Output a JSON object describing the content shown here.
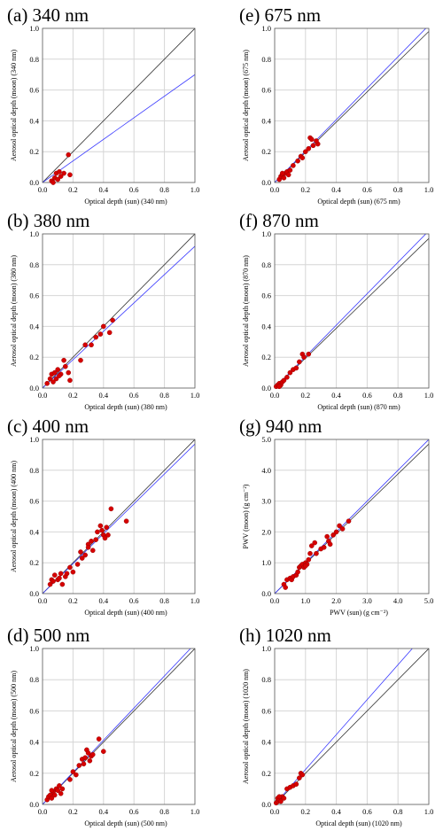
{
  "chart_data": [
    {
      "type": "scatter",
      "title": "(a)  340 nm",
      "xlabel": "Optical depth (sun)    (340 nm)",
      "ylabel": "Aerosol optical depth (moon)  (340 nm)",
      "xlim": [
        0,
        1.0
      ],
      "ylim": [
        0,
        1.0
      ],
      "xticks": [
        "0.0",
        "0.2",
        "0.4",
        "0.6",
        "0.8",
        "1.0"
      ],
      "yticks": [
        "0.0",
        "0.2",
        "0.4",
        "0.6",
        "0.8",
        "1.0"
      ],
      "grid": true,
      "fit_line": {
        "slope": 0.7,
        "intercept": 0.0
      },
      "reference_line": {
        "slope": 1.0,
        "intercept": 0.0
      },
      "points": [
        [
          0.06,
          0.01
        ],
        [
          0.08,
          0.03
        ],
        [
          0.09,
          0.06
        ],
        [
          0.11,
          0.07
        ],
        [
          0.12,
          0.04
        ],
        [
          0.14,
          0.06
        ],
        [
          0.17,
          0.18
        ],
        [
          0.18,
          0.05
        ],
        [
          0.07,
          0.0
        ],
        [
          0.1,
          0.02
        ]
      ]
    },
    {
      "type": "scatter",
      "title": "(b)  380 nm",
      "xlabel": "Optical depth (sun)    (380 nm)",
      "ylabel": "Aerosol optical depth (moon)  (380 nm)",
      "xlim": [
        0,
        1.0
      ],
      "ylim": [
        0,
        1.0
      ],
      "xticks": [
        "0.0",
        "0.2",
        "0.4",
        "0.6",
        "0.8",
        "1.0"
      ],
      "yticks": [
        "0.0",
        "0.2",
        "0.4",
        "0.6",
        "0.8",
        "1.0"
      ],
      "grid": true,
      "fit_line": {
        "slope": 0.92,
        "intercept": 0.0
      },
      "reference_line": {
        "slope": 1.0,
        "intercept": 0.0
      },
      "points": [
        [
          0.03,
          0.03
        ],
        [
          0.05,
          0.06
        ],
        [
          0.06,
          0.09
        ],
        [
          0.08,
          0.1
        ],
        [
          0.09,
          0.06
        ],
        [
          0.1,
          0.12
        ],
        [
          0.12,
          0.09
        ],
        [
          0.14,
          0.18
        ],
        [
          0.15,
          0.14
        ],
        [
          0.17,
          0.1
        ],
        [
          0.18,
          0.05
        ],
        [
          0.25,
          0.18
        ],
        [
          0.28,
          0.28
        ],
        [
          0.32,
          0.28
        ],
        [
          0.35,
          0.33
        ],
        [
          0.38,
          0.35
        ],
        [
          0.4,
          0.4
        ],
        [
          0.44,
          0.36
        ],
        [
          0.46,
          0.44
        ],
        [
          0.07,
          0.04
        ],
        [
          0.11,
          0.08
        ]
      ]
    },
    {
      "type": "scatter",
      "title": "(c)  400 nm",
      "xlabel": "Optical depth (sun)    (400 nm)",
      "ylabel": "Aerosol optical depth (moon)  (400 nm)",
      "xlim": [
        0,
        1.0
      ],
      "ylim": [
        0,
        1.0
      ],
      "xticks": [
        "0.0",
        "0.2",
        "0.4",
        "0.6",
        "0.8",
        "1.0"
      ],
      "yticks": [
        "0.0",
        "0.2",
        "0.4",
        "0.6",
        "0.8",
        "1.0"
      ],
      "grid": true,
      "fit_line": {
        "slope": 0.97,
        "intercept": 0.0
      },
      "reference_line": {
        "slope": 1.0,
        "intercept": 0.0
      },
      "points": [
        [
          0.05,
          0.06
        ],
        [
          0.06,
          0.09
        ],
        [
          0.07,
          0.08
        ],
        [
          0.08,
          0.12
        ],
        [
          0.1,
          0.09
        ],
        [
          0.11,
          0.1
        ],
        [
          0.12,
          0.13
        ],
        [
          0.13,
          0.06
        ],
        [
          0.15,
          0.11
        ],
        [
          0.16,
          0.13
        ],
        [
          0.18,
          0.17
        ],
        [
          0.2,
          0.14
        ],
        [
          0.23,
          0.19
        ],
        [
          0.25,
          0.27
        ],
        [
          0.26,
          0.23
        ],
        [
          0.28,
          0.25
        ],
        [
          0.3,
          0.32
        ],
        [
          0.32,
          0.34
        ],
        [
          0.33,
          0.28
        ],
        [
          0.35,
          0.35
        ],
        [
          0.36,
          0.4
        ],
        [
          0.38,
          0.44
        ],
        [
          0.39,
          0.41
        ],
        [
          0.4,
          0.38
        ],
        [
          0.41,
          0.36
        ],
        [
          0.42,
          0.43
        ],
        [
          0.43,
          0.38
        ],
        [
          0.45,
          0.55
        ],
        [
          0.55,
          0.47
        ],
        [
          0.3,
          0.3
        ]
      ]
    },
    {
      "type": "scatter",
      "title": "(d)  500 nm",
      "xlabel": "Optical depth (sun)    (500 nm)",
      "ylabel": "Aerosol optical depth (moon)  (500 nm)",
      "xlim": [
        0,
        1.0
      ],
      "ylim": [
        0,
        1.0
      ],
      "xticks": [
        "0.0",
        "0.2",
        "0.4",
        "0.6",
        "0.8",
        "1.0"
      ],
      "yticks": [
        "0.0",
        "0.2",
        "0.4",
        "0.6",
        "0.8",
        "1.0"
      ],
      "grid": true,
      "fit_line": {
        "slope": 1.03,
        "intercept": 0.0
      },
      "reference_line": {
        "slope": 1.0,
        "intercept": 0.0
      },
      "points": [
        [
          0.03,
          0.03
        ],
        [
          0.04,
          0.05
        ],
        [
          0.05,
          0.06
        ],
        [
          0.06,
          0.04
        ],
        [
          0.07,
          0.08
        ],
        [
          0.08,
          0.06
        ],
        [
          0.09,
          0.1
        ],
        [
          0.1,
          0.09
        ],
        [
          0.11,
          0.12
        ],
        [
          0.12,
          0.07
        ],
        [
          0.13,
          0.1
        ],
        [
          0.18,
          0.16
        ],
        [
          0.2,
          0.21
        ],
        [
          0.22,
          0.19
        ],
        [
          0.24,
          0.25
        ],
        [
          0.26,
          0.29
        ],
        [
          0.27,
          0.26
        ],
        [
          0.28,
          0.3
        ],
        [
          0.29,
          0.35
        ],
        [
          0.3,
          0.33
        ],
        [
          0.31,
          0.28
        ],
        [
          0.32,
          0.31
        ],
        [
          0.33,
          0.32
        ],
        [
          0.37,
          0.42
        ],
        [
          0.4,
          0.34
        ],
        [
          0.06,
          0.09
        ]
      ]
    },
    {
      "type": "scatter",
      "title": "(e) 675 nm",
      "xlabel": "Optical depth (sun)    (675 nm)",
      "ylabel": "Aerosol optical depth (moon)  (675 nm)",
      "xlim": [
        0,
        1.0
      ],
      "ylim": [
        0,
        1.0
      ],
      "xticks": [
        "0.0",
        "0.2",
        "0.4",
        "0.6",
        "0.8",
        "1.0"
      ],
      "yticks": [
        "0.0",
        "0.2",
        "0.4",
        "0.6",
        "0.8",
        "1.0"
      ],
      "grid": true,
      "fit_line": {
        "slope": 1.02,
        "intercept": 0.0
      },
      "reference_line": {
        "slope": 0.98,
        "intercept": 0.0
      },
      "points": [
        [
          0.03,
          0.02
        ],
        [
          0.04,
          0.04
        ],
        [
          0.05,
          0.05
        ],
        [
          0.06,
          0.03
        ],
        [
          0.07,
          0.06
        ],
        [
          0.08,
          0.07
        ],
        [
          0.09,
          0.05
        ],
        [
          0.1,
          0.08
        ],
        [
          0.12,
          0.11
        ],
        [
          0.15,
          0.14
        ],
        [
          0.17,
          0.17
        ],
        [
          0.18,
          0.16
        ],
        [
          0.2,
          0.2
        ],
        [
          0.22,
          0.22
        ],
        [
          0.23,
          0.29
        ],
        [
          0.24,
          0.28
        ],
        [
          0.25,
          0.24
        ],
        [
          0.28,
          0.25
        ],
        [
          0.27,
          0.27
        ],
        [
          0.05,
          0.06
        ]
      ]
    },
    {
      "type": "scatter",
      "title": "(f)  870 nm",
      "xlabel": "Optical depth (sun)    (870 nm)",
      "ylabel": "Aerosol optical depth (moon)  (870 nm)",
      "xlim": [
        0,
        1.0
      ],
      "ylim": [
        0,
        1.0
      ],
      "xticks": [
        "0.0",
        "0.2",
        "0.4",
        "0.6",
        "0.8",
        "1.0"
      ],
      "yticks": [
        "0.0",
        "0.2",
        "0.4",
        "0.6",
        "0.8",
        "1.0"
      ],
      "grid": true,
      "fit_line": {
        "slope": 1.02,
        "intercept": 0.0
      },
      "reference_line": {
        "slope": 0.97,
        "intercept": 0.0
      },
      "points": [
        [
          0.01,
          0.01
        ],
        [
          0.02,
          0.02
        ],
        [
          0.03,
          0.03
        ],
        [
          0.04,
          0.02
        ],
        [
          0.05,
          0.04
        ],
        [
          0.06,
          0.05
        ],
        [
          0.08,
          0.07
        ],
        [
          0.1,
          0.1
        ],
        [
          0.12,
          0.12
        ],
        [
          0.14,
          0.13
        ],
        [
          0.16,
          0.17
        ],
        [
          0.18,
          0.22
        ],
        [
          0.19,
          0.2
        ],
        [
          0.22,
          0.22
        ],
        [
          0.03,
          0.01
        ]
      ]
    },
    {
      "type": "scatter",
      "title": "(g)  940 nm",
      "xlabel": "PWV (sun)   (g cm⁻²)",
      "ylabel": "PWV (moon)   (g cm⁻²)",
      "xlim": [
        0,
        5.0
      ],
      "ylim": [
        0,
        5.0
      ],
      "xticks": [
        "0.0",
        "1.0",
        "2.0",
        "3.0",
        "4.0",
        "5.0"
      ],
      "yticks": [
        "0.0",
        "1.0",
        "2.0",
        "3.0",
        "4.0",
        "5.0"
      ],
      "grid": true,
      "fit_line": {
        "slope": 1.0,
        "intercept": 0.0
      },
      "reference_line": {
        "slope": 0.97,
        "intercept": 0.0
      },
      "points": [
        [
          0.3,
          0.3
        ],
        [
          0.35,
          0.2
        ],
        [
          0.4,
          0.45
        ],
        [
          0.5,
          0.5
        ],
        [
          0.55,
          0.45
        ],
        [
          0.6,
          0.55
        ],
        [
          0.7,
          0.6
        ],
        [
          0.8,
          0.85
        ],
        [
          0.85,
          0.9
        ],
        [
          0.9,
          0.95
        ],
        [
          0.95,
          0.85
        ],
        [
          1.0,
          1.0
        ],
        [
          1.05,
          0.95
        ],
        [
          1.1,
          1.1
        ],
        [
          1.15,
          1.3
        ],
        [
          1.2,
          1.55
        ],
        [
          1.3,
          1.65
        ],
        [
          1.35,
          1.3
        ],
        [
          1.5,
          1.45
        ],
        [
          1.6,
          1.5
        ],
        [
          1.7,
          1.85
        ],
        [
          1.75,
          1.7
        ],
        [
          1.8,
          1.6
        ],
        [
          1.9,
          1.9
        ],
        [
          2.0,
          2.0
        ],
        [
          2.1,
          2.2
        ],
        [
          2.2,
          2.1
        ],
        [
          2.4,
          2.35
        ],
        [
          1.0,
          0.9
        ],
        [
          0.75,
          0.7
        ]
      ]
    },
    {
      "type": "scatter",
      "title": "(h)  1020 nm",
      "xlabel": "Optical depth (sun)    (1020 nm)",
      "ylabel": "Aerosol optical depth (moon)  (1020 nm)",
      "xlim": [
        0,
        1.0
      ],
      "ylim": [
        0,
        1.0
      ],
      "xticks": [
        "0.0",
        "0.2",
        "0.4",
        "0.6",
        "0.8",
        "1.0"
      ],
      "yticks": [
        "0.0",
        "0.2",
        "0.4",
        "0.6",
        "0.8",
        "1.0"
      ],
      "grid": true,
      "fit_line": {
        "slope": 1.12,
        "intercept": 0.0
      },
      "reference_line": {
        "slope": 1.0,
        "intercept": 0.0
      },
      "points": [
        [
          0.01,
          0.01
        ],
        [
          0.02,
          0.02
        ],
        [
          0.02,
          0.04
        ],
        [
          0.03,
          0.03
        ],
        [
          0.04,
          0.02
        ],
        [
          0.05,
          0.05
        ],
        [
          0.06,
          0.04
        ],
        [
          0.08,
          0.1
        ],
        [
          0.1,
          0.11
        ],
        [
          0.12,
          0.12
        ],
        [
          0.14,
          0.13
        ],
        [
          0.16,
          0.17
        ],
        [
          0.17,
          0.2
        ],
        [
          0.18,
          0.19
        ],
        [
          0.03,
          0.05
        ]
      ]
    }
  ],
  "colors": {
    "points": "#d60000",
    "point_edge": "#8a0000",
    "fit_line": "#3a3aff",
    "reference_line": "#333333",
    "grid": "#d6d6d6"
  }
}
